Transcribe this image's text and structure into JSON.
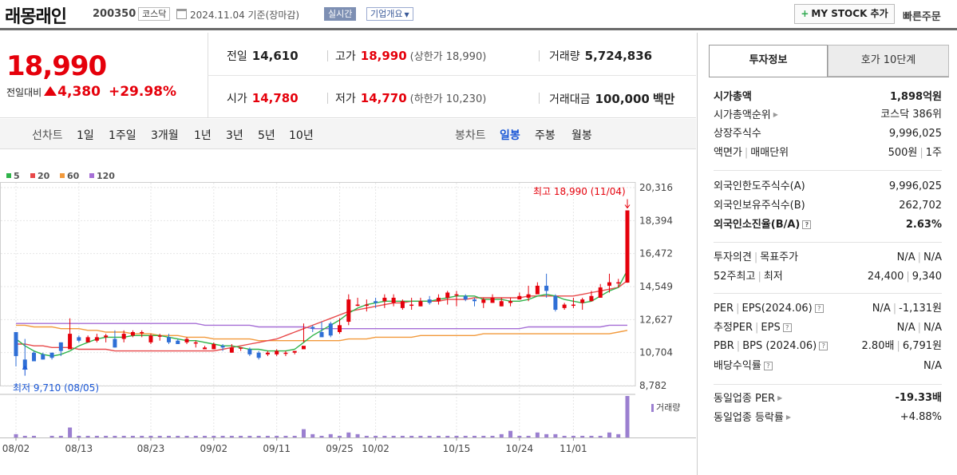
{
  "header": {
    "company_name": "래몽래인",
    "stock_code": "200350",
    "market": "코스닥",
    "date_text": "2024.11.04 기준(장마감)",
    "realtime_label": "실시간",
    "overview_label": "기업개요",
    "mystock_label": "MY STOCK 추가",
    "quick_order_label": "빠른주문"
  },
  "price": {
    "current": "18,990",
    "change_label": "전일대비",
    "change": "4,380",
    "change_rate": "+29.98%"
  },
  "quote": {
    "prev_label": "전일",
    "prev": "14,610",
    "high_label": "고가",
    "high": "18,990",
    "high_sub": "(상한가 18,990)",
    "volume_label": "거래량",
    "volume": "5,724,836",
    "open_label": "시가",
    "open": "14,780",
    "low_label": "저가",
    "low": "14,770",
    "low_sub": "(하한가 10,230)",
    "amount_label": "거래대금",
    "amount": "100,000",
    "amount_unit": "백만"
  },
  "period_bar": {
    "line_label": "선차트",
    "line_periods": [
      "1일",
      "1주일",
      "3개월",
      "1년",
      "3년",
      "5년",
      "10년"
    ],
    "candle_label": "봉차트",
    "candle_periods": [
      "일봉",
      "주봉",
      "월봉"
    ],
    "selected_candle": "일봉"
  },
  "chart_data": {
    "type": "candlestick",
    "legend": [
      {
        "name": "5",
        "color": "#2fb44a"
      },
      {
        "name": "20",
        "color": "#e8494a"
      },
      {
        "name": "60",
        "color": "#f29a3c"
      },
      {
        "name": "120",
        "color": "#a66fd6"
      }
    ],
    "y_ticks": [
      8782,
      10704,
      12627,
      14549,
      16472,
      18394,
      20316
    ],
    "ylim": [
      8782,
      20316
    ],
    "x_tick_labels": [
      "08/02",
      "08/13",
      "08/23",
      "09/02",
      "09/11",
      "09/25",
      "10/02",
      "10/15",
      "10/24",
      "11/01"
    ],
    "x_tick_index": [
      0,
      7,
      15,
      22,
      29,
      36,
      40,
      49,
      56,
      62
    ],
    "annotation_high": "최고 18,990 (11/04)",
    "annotation_low": "최저 9,710 (08/05)",
    "volume_label": "거래량",
    "candles": [
      [
        11900,
        11900,
        10500,
        9900,
        11900
      ],
      [
        11300,
        10300,
        9710,
        11500,
        10100
      ],
      [
        10600,
        10700,
        10200,
        10800,
        10200
      ],
      [
        10200,
        10600,
        10300,
        10700,
        10300
      ],
      [
        10400,
        10700,
        10400,
        10700,
        10300
      ],
      [
        10500,
        11300,
        10800,
        11300,
        10500
      ],
      [
        10900,
        10900,
        11800,
        12700,
        10900
      ],
      [
        11600,
        11600,
        11400,
        11700,
        11300
      ],
      [
        11500,
        11300,
        11600,
        11700,
        11300
      ],
      [
        11400,
        11400,
        11600,
        11800,
        11300
      ],
      [
        11400,
        11600,
        11700,
        11800,
        11300
      ],
      [
        11600,
        11500,
        11000,
        12000,
        11000
      ],
      [
        11200,
        11500,
        11800,
        12000,
        11300
      ],
      [
        11900,
        11700,
        11900,
        12000,
        11600
      ],
      [
        11800,
        11900,
        11900,
        12000,
        11600
      ],
      [
        11700,
        11300,
        11700,
        11800,
        11200
      ],
      [
        11500,
        11700,
        11700,
        11800,
        11400
      ],
      [
        11600,
        11600,
        11300,
        11800,
        11200
      ],
      [
        11400,
        11400,
        11200,
        11500,
        11200
      ],
      [
        11300,
        11300,
        11500,
        11600,
        11200
      ],
      [
        11400,
        11300,
        11300,
        11400,
        11000
      ],
      [
        11300,
        10900,
        11000,
        11100,
        10900
      ],
      [
        11000,
        10900,
        11200,
        11300,
        10900
      ],
      [
        11100,
        11100,
        11000,
        11200,
        10800
      ],
      [
        11100,
        10700,
        11000,
        11200,
        10700
      ],
      [
        11000,
        11000,
        11000,
        11000,
        10800
      ],
      [
        10900,
        10900,
        10600,
        11000,
        10500
      ],
      [
        10600,
        10700,
        10400,
        10800,
        10300
      ],
      [
        10500,
        10600,
        10700,
        10800,
        10500
      ],
      [
        10600,
        10600,
        10800,
        10900,
        10500
      ],
      [
        10800,
        10700,
        10700,
        10800,
        10500
      ],
      [
        10900,
        10700,
        10800,
        10800,
        10600
      ],
      [
        10800,
        10900,
        11100,
        12400,
        11300
      ],
      [
        11300,
        12200,
        12100,
        12300,
        11900
      ],
      [
        12100,
        11900,
        11600,
        12500,
        11700
      ],
      [
        12300,
        12400,
        11700,
        12500,
        11600
      ],
      [
        12100,
        11900,
        12300,
        12700,
        11800
      ],
      [
        12300,
        12500,
        13800,
        14100,
        12300
      ],
      [
        13700,
        13500,
        13500,
        13900,
        13400
      ],
      [
        13500,
        13500,
        13500,
        13800,
        13100
      ],
      [
        13500,
        13700,
        13600,
        13900,
        13300
      ],
      [
        13700,
        13700,
        13900,
        14100,
        13300
      ],
      [
        13800,
        13600,
        13900,
        14100,
        13400
      ],
      [
        13700,
        13300,
        13700,
        13800,
        13200
      ],
      [
        13600,
        13500,
        13500,
        13900,
        13200
      ],
      [
        13500,
        13400,
        13700,
        13900,
        13400
      ],
      [
        13600,
        13800,
        13600,
        14000,
        13500
      ],
      [
        13700,
        13700,
        13900,
        14100,
        13500
      ],
      [
        13900,
        13900,
        14200,
        14300,
        13500
      ],
      [
        14100,
        14100,
        14100,
        14300,
        13400
      ],
      [
        14100,
        14000,
        13800,
        14100,
        13700
      ],
      [
        13900,
        13800,
        13700,
        13900,
        13400
      ],
      [
        13800,
        13600,
        13800,
        13900,
        13300
      ],
      [
        13700,
        13600,
        13900,
        14100,
        13600
      ],
      [
        13700,
        13400,
        13700,
        13900,
        13400
      ],
      [
        13500,
        13600,
        13700,
        13900,
        13400
      ],
      [
        13600,
        13800,
        14000,
        14200,
        13800
      ],
      [
        13900,
        13900,
        14100,
        14600,
        13700
      ],
      [
        14100,
        14100,
        14600,
        14800,
        14200
      ],
      [
        14300,
        14600,
        14300,
        15300,
        13900
      ],
      [
        14400,
        14000,
        13200,
        14100,
        13100
      ],
      [
        13600,
        13300,
        13500,
        13600,
        13200
      ],
      [
        13500,
        13500,
        13500,
        13900,
        13300
      ],
      [
        13600,
        13600,
        13800,
        13900,
        13200
      ],
      [
        13700,
        13700,
        14000,
        14300,
        13700
      ],
      [
        13900,
        13900,
        14500,
        14700,
        13900
      ],
      [
        14200,
        14600,
        14800,
        15300,
        14200
      ],
      [
        14600,
        14800,
        14800,
        15000,
        14500
      ],
      [
        14800,
        14780,
        18990,
        18990,
        14770
      ]
    ],
    "ma5": [
      11500,
      11100,
      10800,
      10600,
      10500,
      10600,
      10800,
      11100,
      11300,
      11500,
      11600,
      11600,
      11600,
      11700,
      11700,
      11700,
      11700,
      11600,
      11500,
      11400,
      11400,
      11300,
      11200,
      11100,
      11100,
      11000,
      10900,
      10900,
      10800,
      10800,
      10800,
      10900,
      11300,
      11700,
      12000,
      12300,
      12600,
      13000,
      13300,
      13500,
      13600,
      13700,
      13700,
      13700,
      13700,
      13700,
      13700,
      13800,
      13900,
      14000,
      14000,
      14000,
      13800,
      13800,
      13800,
      13700,
      13700,
      13800,
      14000,
      14100,
      14000,
      13800,
      13700,
      13600,
      13700,
      14000,
      14300,
      14500,
      15500
    ],
    "ma20": [
      11200,
      11200,
      11100,
      11100,
      11000,
      11000,
      11000,
      10900,
      10900,
      10900,
      10900,
      10800,
      10800,
      10800,
      10800,
      10800,
      10800,
      10800,
      10800,
      10800,
      10800,
      10800,
      10800,
      10900,
      11000,
      11100,
      11200,
      11300,
      11400,
      11500,
      11700,
      11900,
      12100,
      12300,
      12500,
      12700,
      12900,
      13100,
      13200,
      13300,
      13400,
      13500,
      13600,
      13600,
      13700,
      13700,
      13700,
      13700,
      13800,
      13800,
      13800,
      13900,
      13900,
      13900,
      13900,
      13900,
      13900,
      14000,
      14000,
      14000,
      14000,
      14000,
      14000,
      14100,
      14200,
      14300,
      14400,
      14500,
      14900
    ],
    "ma60": [
      12300,
      12300,
      12200,
      12200,
      12200,
      12100,
      12100,
      12100,
      12000,
      12000,
      11900,
      11900,
      11900,
      11800,
      11800,
      11800,
      11700,
      11700,
      11700,
      11600,
      11600,
      11600,
      11500,
      11500,
      11500,
      11500,
      11500,
      11400,
      11400,
      11400,
      11400,
      11400,
      11400,
      11400,
      11400,
      11400,
      11400,
      11500,
      11500,
      11500,
      11600,
      11600,
      11600,
      11600,
      11600,
      11700,
      11700,
      11700,
      11700,
      11700,
      11700,
      11700,
      11800,
      11800,
      11800,
      11800,
      11800,
      11800,
      11800,
      11800,
      11800,
      11800,
      11800,
      11800,
      11800,
      11800,
      11800,
      11900,
      12000
    ],
    "ma120": [
      12400,
      12400,
      12400,
      12400,
      12400,
      12400,
      12400,
      12400,
      12400,
      12400,
      12400,
      12400,
      12400,
      12400,
      12400,
      12400,
      12400,
      12400,
      12400,
      12400,
      12400,
      12300,
      12300,
      12300,
      12300,
      12300,
      12300,
      12200,
      12200,
      12200,
      12200,
      12200,
      12200,
      12100,
      12100,
      12100,
      12100,
      12100,
      12100,
      12100,
      12100,
      12100,
      12100,
      12100,
      12100,
      12100,
      12100,
      12100,
      12100,
      12100,
      12100,
      12100,
      12100,
      12100,
      12100,
      12100,
      12100,
      12200,
      12200,
      12200,
      12200,
      12200,
      12200,
      12200,
      12200,
      12200,
      12300,
      12300,
      12300
    ],
    "volume": [
      2,
      1,
      1,
      0,
      1,
      1,
      6,
      1,
      1,
      1,
      1,
      1,
      1,
      1,
      1,
      1,
      1,
      1,
      1,
      1,
      1,
      1,
      1,
      1,
      1,
      1,
      1,
      1,
      1,
      1,
      1,
      1,
      5,
      2,
      1,
      2,
      1,
      3,
      2,
      1,
      1,
      1,
      1,
      1,
      1,
      1,
      1,
      1,
      1,
      1,
      1,
      1,
      1,
      1,
      2,
      4,
      1,
      1,
      3,
      2,
      2,
      1,
      1,
      1,
      1,
      1,
      3,
      2,
      25
    ]
  },
  "right_panel": {
    "tab_invest": "투자정보",
    "tab_orderbook": "호가 10단계",
    "market_cap_label": "시가총액",
    "market_cap": "1,898억원",
    "market_cap_rank_label": "시가총액순위",
    "market_cap_rank": "코스닥 386위",
    "listed_shares_label": "상장주식수",
    "listed_shares": "9,996,025",
    "par_label": "액면가",
    "trade_unit_label": "매매단위",
    "par": "500원",
    "trade_unit": "1주",
    "foreign_limit_label": "외국인한도주식수(A)",
    "foreign_limit": "9,996,025",
    "foreign_hold_label": "외국인보유주식수(B)",
    "foreign_hold": "262,702",
    "foreign_ratio_label": "외국인소진율(B/A)",
    "foreign_ratio": "2.63%",
    "opinion_label": "투자의견",
    "target_label": "목표주가",
    "opinion": "N/A",
    "target": "N/A",
    "week52_high_label": "52주최고",
    "week52_low_label": "최저",
    "week52_high": "24,400",
    "week52_low": "9,340",
    "per_label": "PER",
    "eps_label": "EPS(2024.06)",
    "per": "N/A",
    "eps": "-1,131원",
    "est_per_label": "추정PER",
    "est_eps_label": "EPS",
    "est_per": "N/A",
    "est_eps": "N/A",
    "pbr_label": "PBR",
    "bps_label": "BPS (2024.06)",
    "pbr": "2.80배",
    "bps": "6,791원",
    "dividend_label": "배당수익률",
    "dividend": "N/A",
    "industry_per_label": "동일업종 PER",
    "industry_per": "-19.33배",
    "industry_change_label": "동일업종 등락률",
    "industry_change": "+4.88%"
  }
}
